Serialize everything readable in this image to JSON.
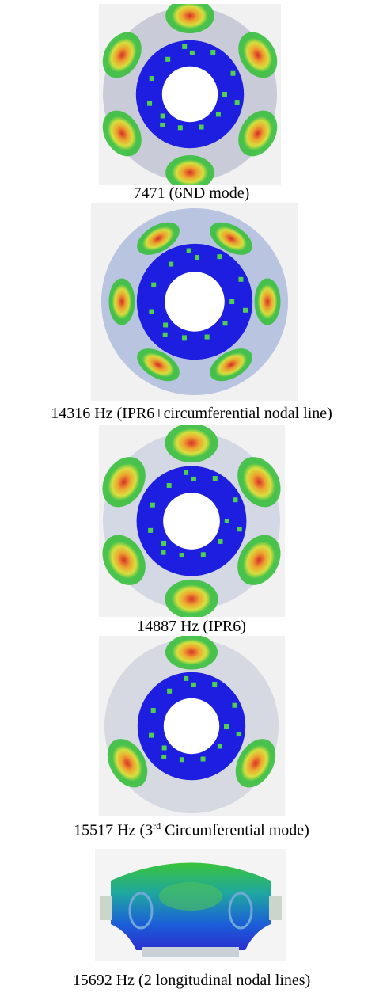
{
  "figures": [
    {
      "caption": "7471 (6ND mode)"
    },
    {
      "caption": "14316 Hz (IPR6+circumferential nodal line)"
    },
    {
      "caption": "14887 Hz (IPR6)"
    },
    {
      "caption_start": "15517 Hz (3",
      "caption_sup": "rd",
      "caption_end": " Circumferential mode)"
    },
    {
      "caption": "15692 Hz (2 longitudinal nodal lines)"
    }
  ]
}
